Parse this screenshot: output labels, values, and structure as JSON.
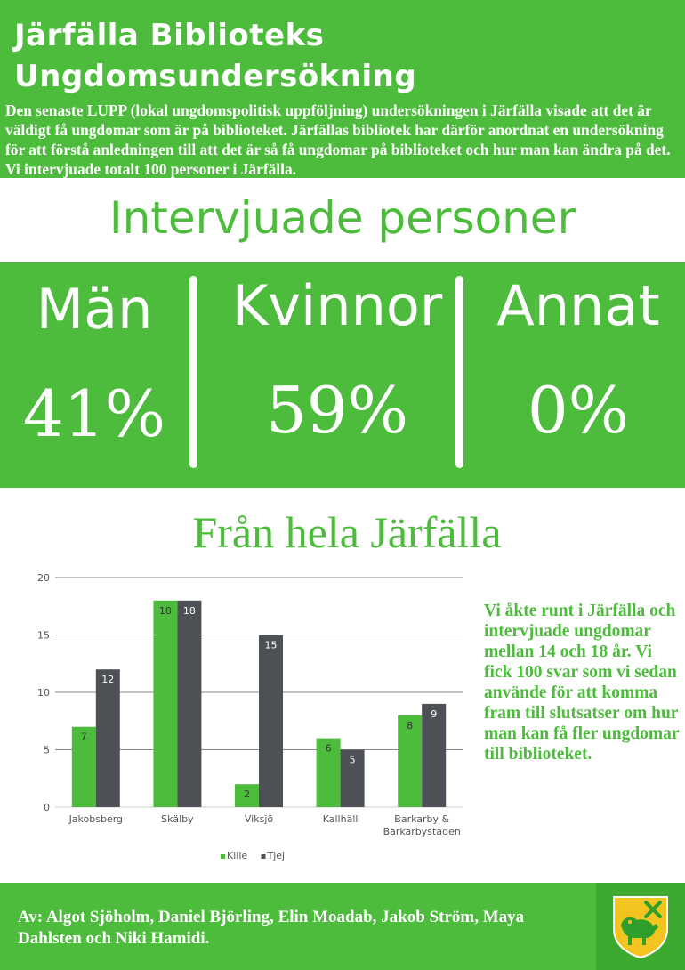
{
  "header": {
    "title_line1": "Järfälla Biblioteks",
    "title_line2": "Ungdomsundersökning",
    "intro": "Den senaste LUPP (lokal ungdomspolitisk uppföljning) undersökningen i Järfälla visade att det är väldigt få ungdomar som är på biblioteket. Järfällas bibliotek har därför anordnat en undersökning för att förstå anledningen till att det är så få ungdomar på biblioteket och hur man kan ändra på det. Vi intervjuade totalt 100 personer i Järfälla."
  },
  "interviewed": {
    "heading": "Intervjuade personer",
    "groups": [
      {
        "label": "Män",
        "value": "41%"
      },
      {
        "label": "Kvinnor",
        "value": "59%"
      },
      {
        "label": "Annat",
        "value": "0%"
      }
    ]
  },
  "region": {
    "heading": "Från hela Järfälla",
    "note": "Vi åkte runt i Järfälla och intervjuade ungdomar mellan 14 och 18 år. Vi fick 100 svar som vi sedan använde för att komma fram till slutsatser om hur man kan få fler ungdomar till biblioteket."
  },
  "chart_data": {
    "type": "bar",
    "categories": [
      "Jakobsberg",
      "Skälby",
      "Viksjö",
      "Kallhäll",
      "Barkarby & Barkarbystaden"
    ],
    "series": [
      {
        "name": "Kille",
        "values": [
          7,
          18,
          2,
          6,
          8
        ],
        "color": "#4dbb3c"
      },
      {
        "name": "Tjej",
        "values": [
          12,
          18,
          15,
          5,
          9
        ],
        "color": "#4d5054"
      }
    ],
    "ylim": [
      0,
      20
    ],
    "yticks": [
      0,
      5,
      10,
      15,
      20
    ],
    "grid": true,
    "legend": "bottom",
    "data_labels": true,
    "title": "",
    "xlabel": "",
    "ylabel": ""
  },
  "footer": {
    "authors": "Av: Algot Sjöholm, Daniel Björling, Elin Moadab, Jakob Ström, Maya Dahlsten och Niki Hamidi.",
    "logo_icon": "jarfalla-coat-of-arms-icon"
  },
  "colors": {
    "brand_green": "#4dbb3c",
    "series_dark": "#4d5054"
  }
}
